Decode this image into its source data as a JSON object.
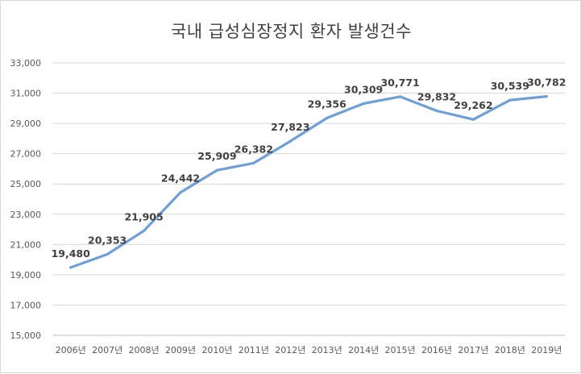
{
  "chart_data": {
    "type": "line",
    "title": "국내 급성심장정지 환자 발생건수",
    "xlabel": "",
    "ylabel": "",
    "categories": [
      "2006년",
      "2007년",
      "2008년",
      "2009년",
      "2010년",
      "2011년",
      "2012년",
      "2013년",
      "2014년",
      "2015년",
      "2016년",
      "2017년",
      "2018년",
      "2019년"
    ],
    "series": [
      {
        "values": [
          19480,
          20353,
          21905,
          24442,
          25909,
          26382,
          27823,
          29356,
          30309,
          30771,
          29832,
          29262,
          30539,
          30782
        ],
        "labels": [
          "19,480",
          "20,353",
          "21,905",
          "24,442",
          "25,909",
          "26,382",
          "27,823",
          "29,356",
          "30,309",
          "30,771",
          "29,832",
          "29,262",
          "30,539",
          "30,782"
        ]
      }
    ],
    "ylim": [
      15000,
      33000
    ],
    "yticks": [
      "15,000",
      "17,000",
      "19,000",
      "21,000",
      "23,000",
      "25,000",
      "27,000",
      "29,000",
      "31,000",
      "33,000"
    ],
    "grid": true,
    "legend": "none",
    "colors": {
      "line": "#6f9fd8",
      "grid": "#d9d9d9",
      "text": "#595959"
    }
  }
}
